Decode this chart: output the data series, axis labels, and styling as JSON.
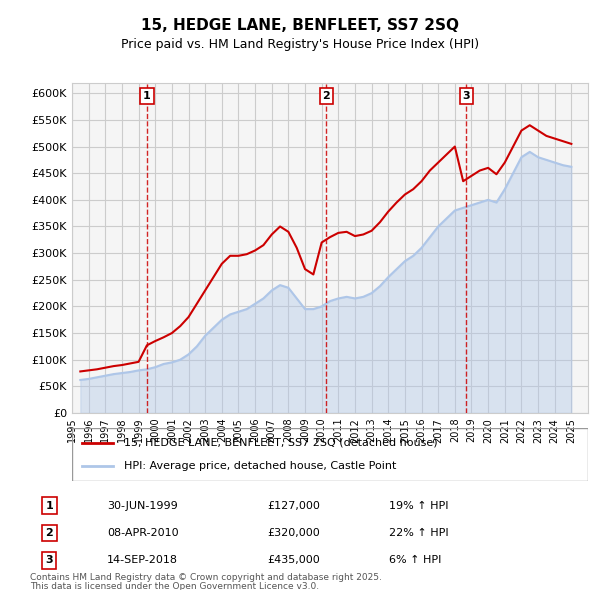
{
  "title": "15, HEDGE LANE, BENFLEET, SS7 2SQ",
  "subtitle": "Price paid vs. HM Land Registry's House Price Index (HPI)",
  "legend_line1": "15, HEDGE LANE, BENFLEET, SS7 2SQ (detached house)",
  "legend_line2": "HPI: Average price, detached house, Castle Point",
  "footer_line1": "Contains HM Land Registry data © Crown copyright and database right 2025.",
  "footer_line2": "This data is licensed under the Open Government Licence v3.0.",
  "transactions": [
    {
      "num": 1,
      "date": "30-JUN-1999",
      "price": "£127,000",
      "hpi": "19% ↑ HPI",
      "x_year": 1999.5
    },
    {
      "num": 2,
      "date": "08-APR-2010",
      "price": "£320,000",
      "hpi": "22% ↑ HPI",
      "x_year": 2010.27
    },
    {
      "num": 3,
      "date": "14-SEP-2018",
      "price": "£435,000",
      "hpi": "6% ↑ HPI",
      "x_year": 2018.7
    }
  ],
  "hpi_color": "#aec6e8",
  "price_color": "#cc0000",
  "background_color": "#f5f5f5",
  "grid_color": "#cccccc",
  "ylim": [
    0,
    620000
  ],
  "xlim_start": 1995,
  "xlim_end": 2026,
  "yticks": [
    0,
    50000,
    100000,
    150000,
    200000,
    250000,
    300000,
    350000,
    400000,
    450000,
    500000,
    550000,
    600000
  ],
  "hpi_data": {
    "years": [
      1995.5,
      1996.0,
      1996.5,
      1997.0,
      1997.5,
      1998.0,
      1998.5,
      1999.0,
      1999.5,
      2000.0,
      2000.5,
      2001.0,
      2001.5,
      2002.0,
      2002.5,
      2003.0,
      2003.5,
      2004.0,
      2004.5,
      2005.0,
      2005.5,
      2006.0,
      2006.5,
      2007.0,
      2007.5,
      2008.0,
      2008.5,
      2009.0,
      2009.5,
      2010.0,
      2010.5,
      2011.0,
      2011.5,
      2012.0,
      2012.5,
      2013.0,
      2013.5,
      2014.0,
      2014.5,
      2015.0,
      2015.5,
      2016.0,
      2016.5,
      2017.0,
      2017.5,
      2018.0,
      2018.5,
      2019.0,
      2019.5,
      2020.0,
      2020.5,
      2021.0,
      2021.5,
      2022.0,
      2022.5,
      2023.0,
      2023.5,
      2024.0,
      2024.5,
      2025.0
    ],
    "values": [
      62000,
      64000,
      67000,
      70000,
      73000,
      75000,
      77000,
      80000,
      82000,
      86000,
      92000,
      95000,
      100000,
      110000,
      125000,
      145000,
      160000,
      175000,
      185000,
      190000,
      195000,
      205000,
      215000,
      230000,
      240000,
      235000,
      215000,
      195000,
      195000,
      200000,
      210000,
      215000,
      218000,
      215000,
      218000,
      225000,
      238000,
      255000,
      270000,
      285000,
      295000,
      310000,
      330000,
      350000,
      365000,
      380000,
      385000,
      390000,
      395000,
      400000,
      395000,
      420000,
      450000,
      480000,
      490000,
      480000,
      475000,
      470000,
      465000,
      462000
    ]
  },
  "price_data": {
    "years": [
      1995.5,
      1996.0,
      1996.5,
      1997.0,
      1997.5,
      1998.0,
      1998.5,
      1999.0,
      1999.5,
      2000.0,
      2000.5,
      2001.0,
      2001.5,
      2002.0,
      2002.5,
      2003.0,
      2003.5,
      2004.0,
      2004.5,
      2005.0,
      2005.5,
      2006.0,
      2006.5,
      2007.0,
      2007.5,
      2008.0,
      2008.5,
      2009.0,
      2009.5,
      2010.0,
      2010.5,
      2011.0,
      2011.5,
      2012.0,
      2012.5,
      2013.0,
      2013.5,
      2014.0,
      2014.5,
      2015.0,
      2015.5,
      2016.0,
      2016.5,
      2017.0,
      2017.5,
      2018.0,
      2018.5,
      2019.0,
      2019.5,
      2020.0,
      2020.5,
      2021.0,
      2021.5,
      2022.0,
      2022.5,
      2023.0,
      2023.5,
      2024.0,
      2024.5,
      2025.0
    ],
    "values": [
      78000,
      80000,
      82000,
      85000,
      88000,
      90000,
      93000,
      96000,
      127000,
      135000,
      142000,
      150000,
      163000,
      180000,
      205000,
      230000,
      255000,
      280000,
      295000,
      295000,
      298000,
      305000,
      315000,
      335000,
      350000,
      340000,
      310000,
      270000,
      260000,
      320000,
      330000,
      338000,
      340000,
      332000,
      335000,
      342000,
      358000,
      378000,
      395000,
      410000,
      420000,
      435000,
      455000,
      470000,
      485000,
      500000,
      435000,
      445000,
      455000,
      460000,
      448000,
      470000,
      500000,
      530000,
      540000,
      530000,
      520000,
      515000,
      510000,
      505000
    ]
  }
}
